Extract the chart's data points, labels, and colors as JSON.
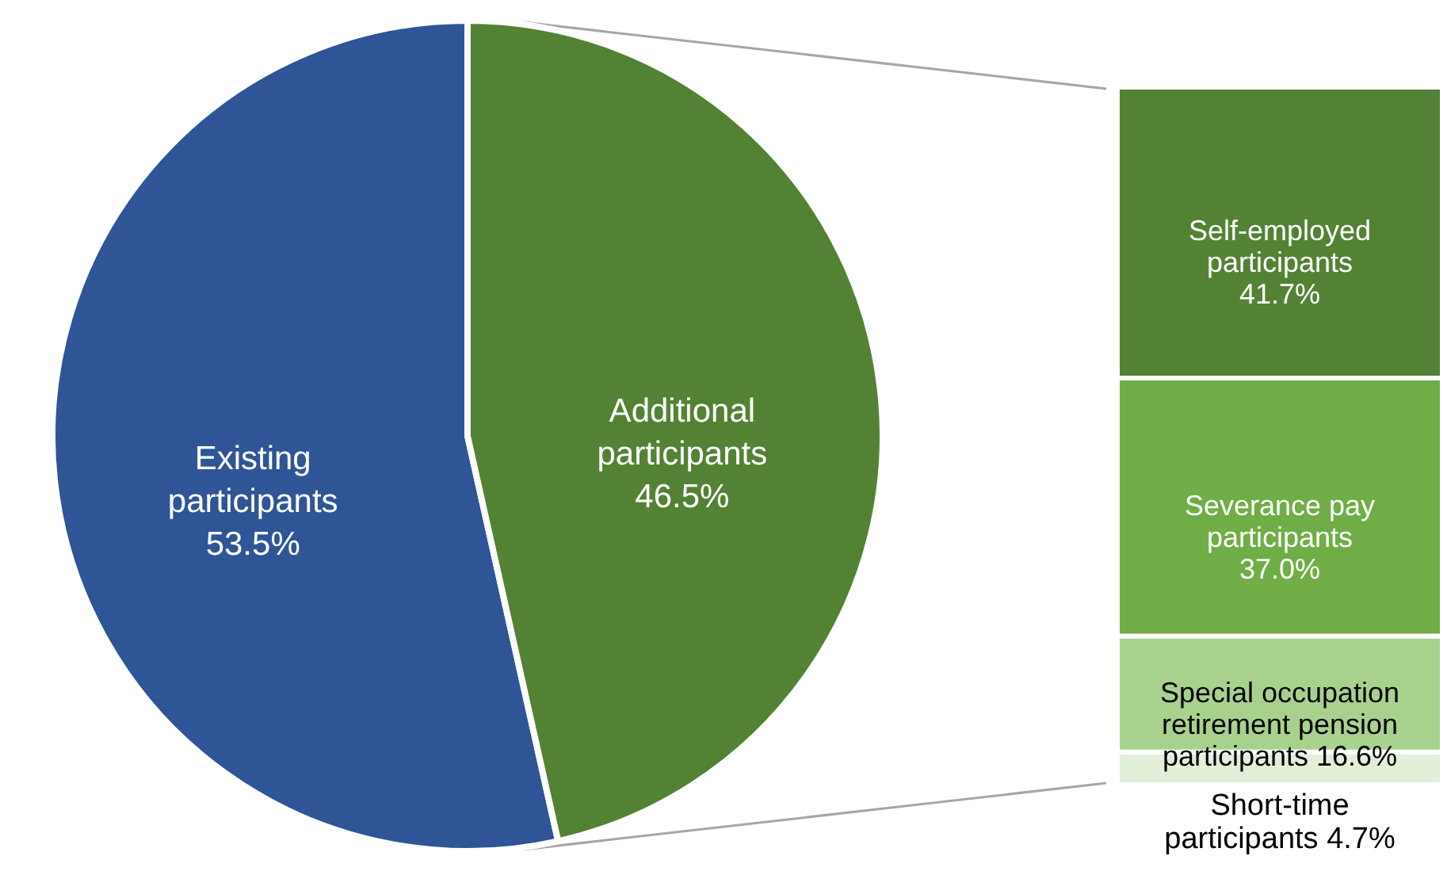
{
  "chart_data": [
    {
      "type": "pie",
      "categories": [
        "Existing participants",
        "Additional participants"
      ],
      "values": [
        53.5,
        46.5
      ],
      "colors": [
        "#2f5597",
        "#548235"
      ],
      "value_labels": [
        "53.5%",
        "46.5%"
      ],
      "legend": false
    },
    {
      "type": "bar",
      "stacked": true,
      "categories": [
        null
      ],
      "legend": false,
      "series": [
        {
          "name": "Short-time participants",
          "color": "#e2efd9",
          "values": [
            4.7
          ],
          "value_labels": [
            "4.7%"
          ]
        },
        {
          "name": "Special occupation retirement pension participants",
          "color": "#a9d18e",
          "values": [
            16.6
          ],
          "value_labels": [
            "16.6%"
          ]
        },
        {
          "name": "Severance pay participants",
          "color": "#70ad47",
          "values": [
            37.0
          ],
          "value_labels": [
            "37.0%"
          ]
        },
        {
          "name": "Self-employed participants",
          "color": "#548235",
          "values": [
            41.7
          ],
          "value_labels": [
            "41.7%"
          ]
        }
      ]
    }
  ]
}
